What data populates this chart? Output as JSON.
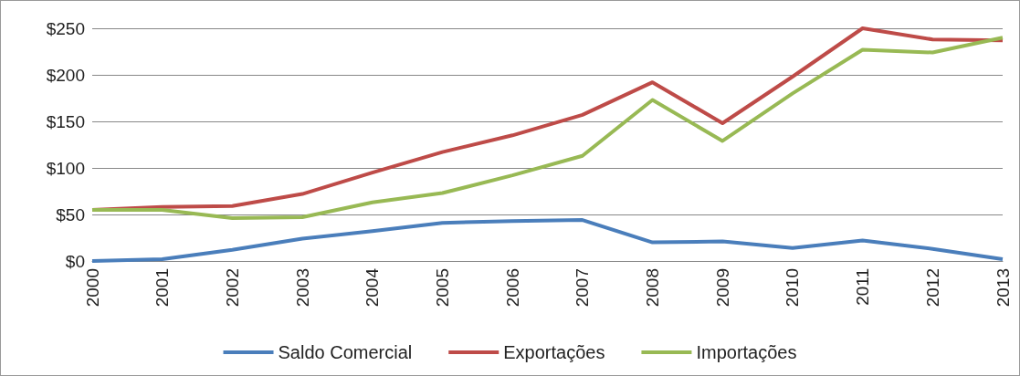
{
  "chart_data": {
    "type": "line",
    "categories": [
      "2000",
      "2001",
      "2002",
      "2003",
      "2004",
      "2005",
      "2006",
      "2007",
      "2008",
      "2009",
      "2010",
      "2011",
      "2012",
      "2013"
    ],
    "series": [
      {
        "name": "Saldo Comercial",
        "color": "#4a7ebb",
        "values": [
          0,
          2,
          12,
          24,
          32,
          41,
          43,
          44,
          20,
          21,
          14,
          22,
          13,
          2
        ]
      },
      {
        "name": "Exportações",
        "color": "#be4b48",
        "values": [
          55,
          58,
          59,
          72,
          95,
          117,
          135,
          157,
          192,
          148,
          198,
          250,
          238,
          237
        ]
      },
      {
        "name": "Importações",
        "color": "#98b954",
        "values": [
          55,
          55,
          46,
          47,
          63,
          73,
          92,
          113,
          173,
          129,
          180,
          227,
          224,
          240
        ]
      }
    ],
    "ylim": [
      0,
      250
    ],
    "yticks": [
      {
        "value": 0,
        "label": "$0"
      },
      {
        "value": 50,
        "label": "$50"
      },
      {
        "value": 100,
        "label": "$100"
      },
      {
        "value": 150,
        "label": "$150"
      },
      {
        "value": 200,
        "label": "$200"
      },
      {
        "value": 250,
        "label": "$250"
      }
    ],
    "grid": "y",
    "legend": "bottom",
    "marker": "none",
    "line_style": "solid"
  }
}
